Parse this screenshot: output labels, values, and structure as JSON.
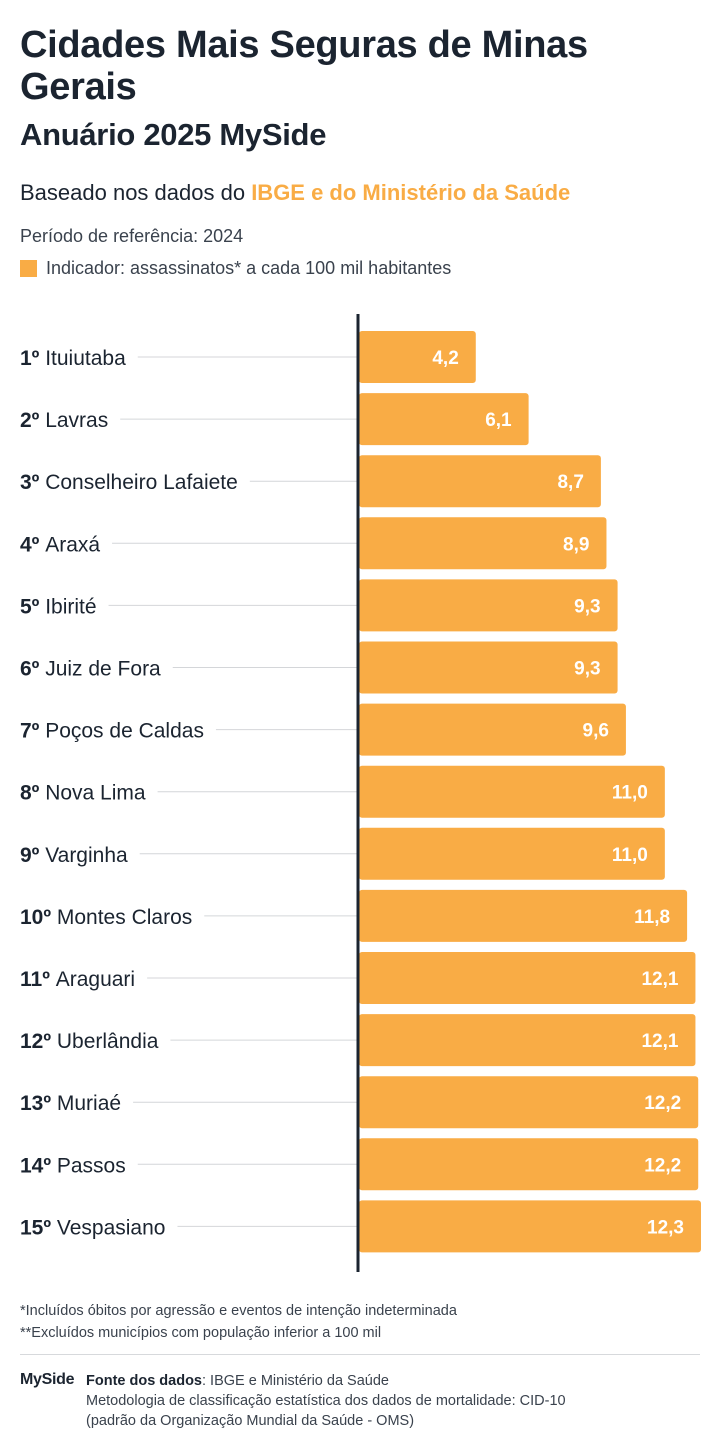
{
  "header": {
    "title": "Cidades Mais Seguras de Minas Gerais",
    "subtitle": "Anuário 2025 MySide",
    "based_prefix": "Baseado nos dados do ",
    "based_highlight": "IBGE e do Ministério da Saúde",
    "period": "Período de referência: 2024",
    "indicator": "Indicador: assassinatos* a cada 100 mil habitantes"
  },
  "colors": {
    "bar": "#f9ac45",
    "text": "#1b2430",
    "axis": "#1b2430"
  },
  "chart_data": {
    "type": "bar",
    "orientation": "horizontal",
    "categories": [
      "1º Ituiutaba",
      "2º Lavras",
      "3º Conselheiro Lafaiete",
      "4º Araxá",
      "5º Ibirité",
      "6º Juiz de Fora",
      "7º Poços de Caldas",
      "8º Nova Lima",
      "9º Varginha",
      "10º Montes Claros",
      "11º Araguari",
      "12º Uberlândia",
      "13º Muriaé",
      "14º Passos",
      "15º Vespasiano"
    ],
    "ranks": [
      "1º",
      "2º",
      "3º",
      "4º",
      "5º",
      "6º",
      "7º",
      "8º",
      "9º",
      "10º",
      "11º",
      "12º",
      "13º",
      "14º",
      "15º"
    ],
    "cities": [
      "Ituiutaba",
      "Lavras",
      "Conselheiro Lafaiete",
      "Araxá",
      "Ibirité",
      "Juiz de Fora",
      "Poços de Caldas",
      "Nova Lima",
      "Varginha",
      "Montes Claros",
      "Araguari",
      "Uberlândia",
      "Muriaé",
      "Passos",
      "Vespasiano"
    ],
    "values": [
      4.2,
      6.1,
      8.7,
      8.9,
      9.3,
      9.3,
      9.6,
      11.0,
      11.0,
      11.8,
      12.1,
      12.1,
      12.2,
      12.2,
      12.3
    ],
    "value_labels": [
      "4,2",
      "6,1",
      "8,7",
      "8,9",
      "9,3",
      "9,3",
      "9,6",
      "11,0",
      "11,0",
      "11,8",
      "12,1",
      "12,1",
      "12,2",
      "12,2",
      "12,3"
    ],
    "xlim": [
      0,
      12.3
    ],
    "grid": false,
    "legend": "none"
  },
  "footnotes": {
    "note1": "*Incluídos óbitos por agressão e eventos de intenção indeterminada",
    "note2": "**Excluídos municípios com população inferior a 100 mil"
  },
  "footer": {
    "logo": "MySide",
    "source_label": "Fonte dos dados",
    "source_text": ": IBGE e Ministério da Saúde",
    "method_line1": "Metodologia de classificação estatística dos dados de mortalidade: CID-10",
    "method_line2": "(padrão da Organização Mundial da Saúde - OMS)"
  }
}
